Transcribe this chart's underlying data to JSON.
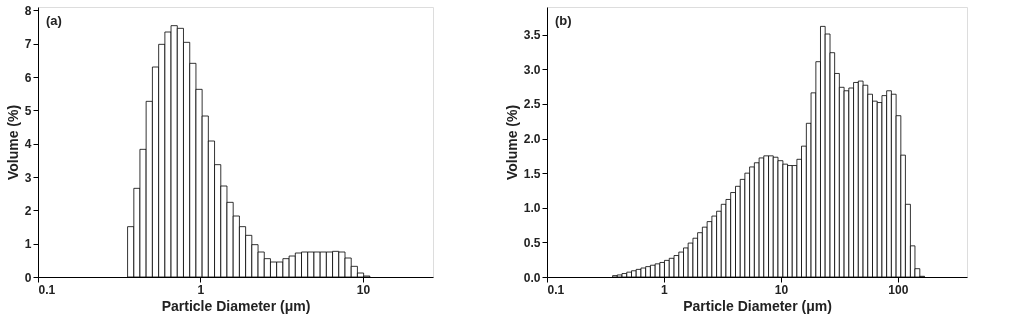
{
  "chart_data": [
    {
      "type": "histogram",
      "xlabel": "Particle Diameter (μm)",
      "ylabel": "Volume (%)",
      "annotations": [
        "(a)"
      ],
      "log": "x",
      "color": "#ffffff",
      "bins": [
        0.356,
        0.389,
        0.424,
        0.463,
        0.506,
        0.553,
        0.604,
        0.659,
        0.72,
        0.786,
        0.859,
        0.938,
        1.024,
        1.118,
        1.221,
        1.334,
        1.456,
        1.59,
        1.737,
        1.897,
        2.071,
        2.262,
        2.47,
        2.697,
        2.945,
        3.217,
        3.513,
        3.836,
        4.189,
        4.574,
        4.995,
        5.455,
        5.957,
        6.505,
        7.103,
        7.757,
        8.471,
        9.25,
        10.1,
        11.03
      ],
      "values": [
        1.51,
        2.66,
        3.83,
        5.27,
        6.3,
        6.98,
        7.35,
        7.54,
        7.46,
        7.04,
        6.41,
        5.63,
        4.83,
        4.08,
        3.37,
        2.73,
        2.24,
        1.83,
        1.51,
        1.25,
        0.97,
        0.75,
        0.55,
        0.45,
        0.45,
        0.55,
        0.63,
        0.72,
        0.75,
        0.75,
        0.75,
        0.75,
        0.75,
        0.77,
        0.75,
        0.57,
        0.32,
        0.12,
        0.03
      ],
      "xlim": [
        0.1,
        27
      ],
      "ylim": [
        0,
        8.1
      ],
      "xticks": [
        0.1,
        1,
        10
      ],
      "yticks": [
        0,
        1,
        2,
        3,
        4,
        5,
        6,
        7,
        8
      ],
      "grid": false
    },
    {
      "type": "histogram",
      "xlabel": "Particle Diameter (μm)",
      "ylabel": "Volume (%)",
      "annotations": [
        "(b)"
      ],
      "log": "x",
      "color": "#ffffff",
      "bins": [
        0.364,
        0.399,
        0.438,
        0.481,
        0.528,
        0.579,
        0.636,
        0.698,
        0.766,
        0.841,
        0.923,
        1.01,
        1.11,
        1.22,
        1.34,
        1.47,
        1.61,
        1.77,
        1.94,
        2.13,
        2.34,
        2.57,
        2.82,
        3.09,
        3.39,
        3.72,
        4.09,
        4.49,
        4.92,
        5.4,
        5.93,
        6.51,
        7.14,
        7.84,
        8.6,
        9.44,
        10.4,
        11.4,
        12.5,
        13.7,
        15.0,
        16.5,
        18.1,
        19.9,
        21.8,
        23.9,
        26.3,
        28.8,
        31.6,
        34.7,
        38.1,
        41.8,
        45.9,
        50.4,
        55.3,
        60.7,
        66.6,
        73.1,
        80.2,
        88.0,
        96.6,
        106,
        116,
        128,
        140,
        154,
        169
      ],
      "values": [
        0.02,
        0.03,
        0.05,
        0.07,
        0.09,
        0.11,
        0.13,
        0.15,
        0.17,
        0.19,
        0.21,
        0.24,
        0.27,
        0.31,
        0.36,
        0.42,
        0.49,
        0.56,
        0.64,
        0.72,
        0.8,
        0.88,
        0.95,
        1.05,
        1.12,
        1.22,
        1.31,
        1.41,
        1.5,
        1.59,
        1.65,
        1.72,
        1.75,
        1.75,
        1.73,
        1.68,
        1.63,
        1.61,
        1.61,
        1.7,
        1.89,
        2.22,
        2.66,
        3.11,
        3.62,
        3.51,
        3.24,
        2.94,
        2.74,
        2.69,
        2.73,
        2.81,
        2.83,
        2.77,
        2.64,
        2.54,
        2.52,
        2.62,
        2.69,
        2.64,
        2.33,
        1.76,
        1.05,
        0.45,
        0.12,
        0.01
      ],
      "xlim": [
        0.1,
        390
      ],
      "ylim": [
        0,
        3.9
      ],
      "xticks": [
        0.1,
        1,
        10,
        100
      ],
      "yticks": [
        {
          "value": 0,
          "label": "0.0"
        },
        {
          "value": 0.5,
          "label": "0.5"
        },
        {
          "value": 1,
          "label": "1.0"
        },
        {
          "value": 1.5,
          "label": "1.5"
        },
        {
          "value": 2,
          "label": "2.0"
        },
        {
          "value": 2.5,
          "label": "2.5"
        },
        {
          "value": 3,
          "label": "3.0"
        },
        {
          "value": 3.5,
          "label": "3.5"
        }
      ],
      "grid": false
    }
  ]
}
